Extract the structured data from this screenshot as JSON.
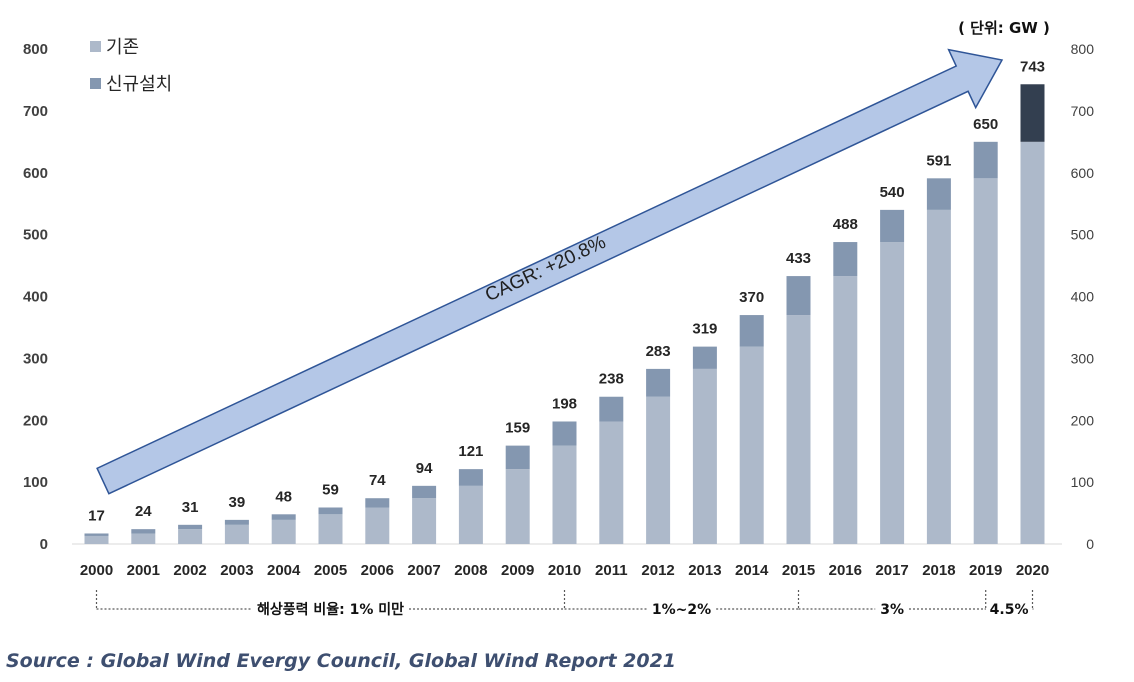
{
  "chart_data": {
    "type": "bar",
    "stacked": true,
    "categories": [
      "2000",
      "2001",
      "2002",
      "2003",
      "2004",
      "2005",
      "2006",
      "2007",
      "2008",
      "2009",
      "2010",
      "2011",
      "2012",
      "2013",
      "2014",
      "2015",
      "2016",
      "2017",
      "2018",
      "2019",
      "2020"
    ],
    "series": [
      {
        "name": "기존",
        "color": "#adb9ca",
        "values": [
          13,
          17,
          24,
          31,
          39,
          48,
          59,
          74,
          94,
          121,
          159,
          198,
          238,
          283,
          319,
          370,
          433,
          488,
          540,
          591,
          650
        ]
      },
      {
        "name": "신규설치",
        "color": "#8497b0",
        "values": [
          4,
          7,
          7,
          8,
          9,
          11,
          15,
          20,
          27,
          38,
          39,
          40,
          45,
          36,
          51,
          63,
          55,
          52,
          51,
          59,
          93
        ],
        "highlight_color_last": "#333f50"
      }
    ],
    "totals": [
      17,
      24,
      31,
      39,
      48,
      59,
      74,
      94,
      121,
      159,
      198,
      238,
      283,
      319,
      370,
      433,
      488,
      540,
      591,
      650,
      743
    ],
    "y_ticks": [
      0,
      100,
      200,
      300,
      400,
      500,
      600,
      700,
      800
    ],
    "ylim": [
      0,
      800
    ],
    "secondary_axis": true,
    "unit_label": "( 단위: GW )",
    "legend_position": "top-left",
    "annotation_arrow": {
      "text": "CAGR: +20.8%",
      "fill": "#b4c7e7",
      "stroke": "#2f5597",
      "from_category": "2000",
      "to_category": "2020"
    },
    "offshore_ratio": [
      {
        "text": "해상풍력 비율: 1% 미만",
        "from": "2000",
        "to": "2010"
      },
      {
        "text": "1%~2%",
        "from": "2010",
        "to": "2015"
      },
      {
        "text": "3%",
        "from": "2015",
        "to": "2019"
      },
      {
        "text": "4.5%",
        "from": "2019",
        "to": "2020"
      }
    ]
  },
  "source": "Source : Global Wind Evergy Council, Global Wind Report 2021"
}
